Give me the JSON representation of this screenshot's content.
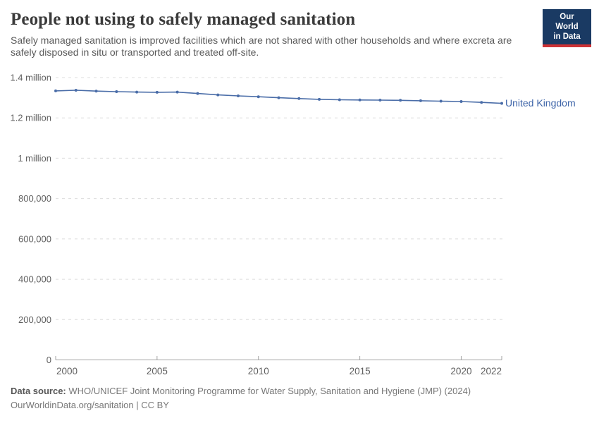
{
  "header": {
    "title": "People not using to safely managed sanitation",
    "subtitle": "Safely managed sanitation is improved facilities which are not shared with other households and where excreta are safely disposed in situ or transported and treated off-site.",
    "logo": {
      "line1": "Our World",
      "line2": "in Data",
      "bg_color": "#1a3a63",
      "accent_color": "#cd3235"
    }
  },
  "chart_data": {
    "type": "line",
    "title": "People not using to safely managed sanitation",
    "xlabel": "",
    "ylabel": "",
    "xlim": [
      2000,
      2022
    ],
    "ylim": [
      0,
      1400000
    ],
    "grid": "horizontal-dashed",
    "legend_position": "end-of-line-label",
    "x": [
      2000,
      2001,
      2002,
      2003,
      2004,
      2005,
      2006,
      2007,
      2008,
      2009,
      2010,
      2011,
      2012,
      2013,
      2014,
      2015,
      2016,
      2017,
      2018,
      2019,
      2020,
      2021,
      2022
    ],
    "series": [
      {
        "name": "United Kingdom",
        "color": "#4a6da8",
        "label_color": "#3d64a8",
        "values": [
          1334000,
          1337000,
          1333000,
          1330000,
          1328000,
          1327000,
          1328000,
          1321000,
          1314000,
          1309000,
          1305000,
          1300000,
          1296000,
          1292000,
          1290000,
          1289000,
          1288000,
          1287000,
          1285000,
          1283000,
          1281000,
          1277000,
          1272000
        ]
      }
    ],
    "x_ticks": [
      {
        "value": 2000,
        "label": "2000"
      },
      {
        "value": 2005,
        "label": "2005"
      },
      {
        "value": 2010,
        "label": "2010"
      },
      {
        "value": 2015,
        "label": "2015"
      },
      {
        "value": 2020,
        "label": "2020"
      },
      {
        "value": 2022,
        "label": "2022"
      }
    ],
    "y_ticks": [
      {
        "value": 0,
        "label": "0"
      },
      {
        "value": 200000,
        "label": "200,000"
      },
      {
        "value": 400000,
        "label": "400,000"
      },
      {
        "value": 600000,
        "label": "600,000"
      },
      {
        "value": 800000,
        "label": "800,000"
      },
      {
        "value": 1000000,
        "label": "1 million"
      },
      {
        "value": 1200000,
        "label": "1.2 million"
      },
      {
        "value": 1400000,
        "label": "1.4 million"
      }
    ],
    "colors": {
      "gridline": "#dcdcdc",
      "axis": "#a3a3a3",
      "tick_label": "#5f5f5f"
    }
  },
  "footer": {
    "source_label": "Data source:",
    "source_text": "WHO/UNICEF Joint Monitoring Programme for Water Supply, Sanitation and Hygiene (JMP) (2024)",
    "license_line": "OurWorldinData.org/sanitation | CC BY"
  }
}
